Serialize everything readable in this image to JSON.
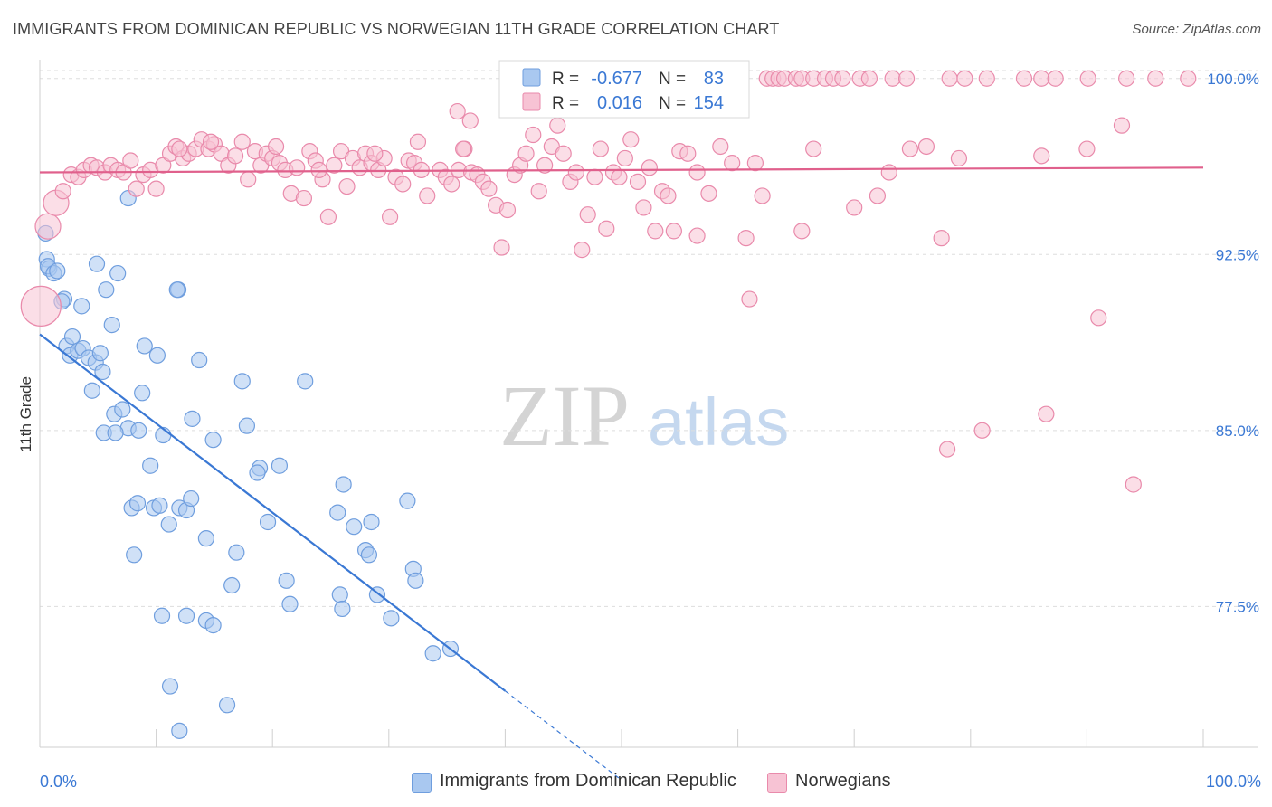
{
  "title": "IMMIGRANTS FROM DOMINICAN REPUBLIC VS NORWEGIAN 11TH GRADE CORRELATION CHART",
  "source": "Source: ZipAtlas.com",
  "watermark": {
    "zip": "ZIP",
    "atlas": "atlas"
  },
  "colors": {
    "blue": "#3a78d4",
    "blue_fill": "#a9c8f0",
    "blue_stroke": "#6f9ede",
    "pink": "#e0608c",
    "pink_fill": "#f7c3d4",
    "pink_stroke": "#e98aab",
    "grid": "#dddddd",
    "axis_text": "#3a78d4"
  },
  "legend_box": {
    "rows": [
      {
        "series": "blue",
        "r_label": "R =",
        "r_value": "-0.677",
        "n_label": "N =",
        "n_value": "83"
      },
      {
        "series": "pink",
        "r_label": "R =",
        "r_value": "0.016",
        "n_label": "N =",
        "n_value": "154"
      }
    ]
  },
  "chart_data": {
    "type": "scatter",
    "title": "IMMIGRANTS FROM DOMINICAN REPUBLIC VS NORWEGIAN 11TH GRADE CORRELATION CHART",
    "xlabel": "",
    "ylabel": "11th Grade",
    "xlim": [
      0,
      100
    ],
    "ylim": [
      71.5,
      100.8
    ],
    "x_tick_labels": [
      "0.0%",
      "100.0%"
    ],
    "y_ticks": [
      {
        "value": 100.0,
        "label": "100.0%"
      },
      {
        "value": 92.5,
        "label": "92.5%"
      },
      {
        "value": 85.0,
        "label": "85.0%"
      },
      {
        "value": 77.5,
        "label": "77.5%"
      }
    ],
    "grid": true,
    "legend_position": "bottom",
    "series": [
      {
        "name": "Immigrants from Dominican Republic",
        "color": "blue",
        "trend": {
          "x0": 0,
          "y0": 89.1,
          "x1": 40,
          "y1": 73.9,
          "dash_to_x": 50
        },
        "points": [
          [
            0.5,
            93.4
          ],
          [
            0.6,
            92.3
          ],
          [
            0.8,
            91.9
          ],
          [
            0.7,
            92.0
          ],
          [
            1.2,
            91.7
          ],
          [
            1.5,
            91.8
          ],
          [
            2.1,
            90.6
          ],
          [
            1.9,
            90.5
          ],
          [
            3.6,
            90.3
          ],
          [
            2.3,
            88.6
          ],
          [
            2.6,
            88.2
          ],
          [
            2.8,
            89.0
          ],
          [
            3.3,
            88.4
          ],
          [
            3.7,
            88.5
          ],
          [
            4.2,
            88.1
          ],
          [
            4.8,
            87.9
          ],
          [
            5.2,
            88.3
          ],
          [
            4.5,
            86.7
          ],
          [
            5.4,
            87.5
          ],
          [
            6.2,
            89.5
          ],
          [
            4.9,
            92.1
          ],
          [
            5.7,
            91.0
          ],
          [
            6.7,
            91.7
          ],
          [
            7.6,
            94.9
          ],
          [
            9.0,
            88.6
          ],
          [
            10.1,
            88.2
          ],
          [
            11.9,
            91.0
          ],
          [
            11.8,
            91.0
          ],
          [
            13.7,
            88.0
          ],
          [
            8.8,
            86.6
          ],
          [
            6.4,
            85.7
          ],
          [
            7.1,
            85.9
          ],
          [
            7.6,
            85.1
          ],
          [
            5.5,
            84.9
          ],
          [
            6.5,
            84.9
          ],
          [
            8.5,
            85.0
          ],
          [
            10.6,
            84.8
          ],
          [
            9.5,
            83.5
          ],
          [
            13.1,
            85.5
          ],
          [
            14.9,
            84.6
          ],
          [
            17.4,
            87.1
          ],
          [
            17.8,
            85.2
          ],
          [
            18.9,
            83.4
          ],
          [
            18.7,
            83.2
          ],
          [
            20.6,
            83.5
          ],
          [
            22.8,
            87.1
          ],
          [
            7.9,
            81.7
          ],
          [
            8.4,
            81.9
          ],
          [
            9.8,
            81.7
          ],
          [
            10.3,
            81.8
          ],
          [
            12.0,
            81.7
          ],
          [
            12.6,
            81.6
          ],
          [
            13.0,
            82.1
          ],
          [
            11.1,
            81.0
          ],
          [
            14.3,
            80.4
          ],
          [
            16.9,
            79.8
          ],
          [
            19.6,
            81.1
          ],
          [
            25.6,
            81.5
          ],
          [
            26.1,
            82.7
          ],
          [
            27.0,
            80.9
          ],
          [
            28.5,
            81.1
          ],
          [
            28.0,
            79.9
          ],
          [
            28.3,
            79.7
          ],
          [
            31.6,
            82.0
          ],
          [
            8.1,
            79.7
          ],
          [
            16.5,
            78.4
          ],
          [
            21.2,
            78.6
          ],
          [
            21.5,
            77.6
          ],
          [
            25.8,
            78.0
          ],
          [
            26.0,
            77.4
          ],
          [
            29.0,
            78.0
          ],
          [
            32.1,
            79.1
          ],
          [
            32.3,
            78.6
          ],
          [
            10.5,
            77.1
          ],
          [
            12.6,
            77.1
          ],
          [
            14.3,
            76.9
          ],
          [
            14.9,
            76.7
          ],
          [
            30.2,
            77.0
          ],
          [
            35.3,
            75.7
          ],
          [
            33.8,
            75.5
          ],
          [
            11.2,
            74.1
          ],
          [
            16.1,
            73.3
          ],
          [
            12.0,
            72.2
          ]
        ]
      },
      {
        "name": "Norwegians",
        "color": "pink",
        "trend": {
          "x0": 0,
          "y0": 96.0,
          "x1": 100,
          "y1": 96.2
        },
        "points": [
          [
            0.1,
            90.3,
            "xl"
          ],
          [
            0.7,
            93.7,
            "l"
          ],
          [
            1.4,
            94.7,
            "l"
          ],
          [
            2.0,
            95.2
          ],
          [
            2.7,
            95.9
          ],
          [
            3.3,
            95.8
          ],
          [
            3.8,
            96.1
          ],
          [
            4.4,
            96.3
          ],
          [
            4.9,
            96.2
          ],
          [
            5.6,
            96.0
          ],
          [
            6.1,
            96.3
          ],
          [
            6.7,
            96.1
          ],
          [
            7.2,
            96.0
          ],
          [
            7.8,
            96.5
          ],
          [
            8.3,
            95.3
          ],
          [
            8.9,
            95.9
          ],
          [
            9.5,
            96.1
          ],
          [
            10.0,
            95.3
          ],
          [
            10.6,
            96.3
          ],
          [
            11.2,
            96.8
          ],
          [
            11.7,
            97.1
          ],
          [
            12.3,
            96.6
          ],
          [
            12.8,
            96.8
          ],
          [
            13.4,
            97.0
          ],
          [
            13.9,
            97.4
          ],
          [
            14.5,
            97.0
          ],
          [
            15.0,
            97.2
          ],
          [
            15.6,
            96.8
          ],
          [
            16.2,
            96.3
          ],
          [
            16.8,
            96.7
          ],
          [
            17.4,
            97.3
          ],
          [
            17.9,
            95.7
          ],
          [
            18.5,
            96.9
          ],
          [
            19.0,
            96.3
          ],
          [
            19.5,
            96.8
          ],
          [
            20.0,
            96.6
          ],
          [
            20.6,
            96.4
          ],
          [
            21.1,
            96.1
          ],
          [
            21.6,
            95.1
          ],
          [
            22.1,
            96.2
          ],
          [
            22.7,
            94.9
          ],
          [
            23.2,
            96.9
          ],
          [
            23.7,
            96.5
          ],
          [
            24.3,
            95.7
          ],
          [
            24.8,
            94.1
          ],
          [
            25.3,
            96.3
          ],
          [
            25.9,
            96.9
          ],
          [
            26.4,
            95.4
          ],
          [
            26.9,
            96.6
          ],
          [
            27.5,
            96.2
          ],
          [
            28.0,
            96.8
          ],
          [
            28.5,
            96.4
          ],
          [
            29.1,
            96.1
          ],
          [
            29.6,
            96.6
          ],
          [
            30.1,
            94.1
          ],
          [
            30.6,
            95.8
          ],
          [
            31.2,
            95.5
          ],
          [
            31.7,
            96.5
          ],
          [
            32.2,
            96.4
          ],
          [
            32.8,
            96.1
          ],
          [
            33.3,
            95.0
          ],
          [
            34.4,
            96.1
          ],
          [
            34.9,
            95.8
          ],
          [
            35.4,
            95.5
          ],
          [
            36.0,
            96.1
          ],
          [
            36.5,
            97.0
          ],
          [
            37.1,
            96.0
          ],
          [
            37.6,
            95.9
          ],
          [
            38.1,
            95.6
          ],
          [
            38.6,
            95.3
          ],
          [
            39.2,
            94.6
          ],
          [
            39.7,
            92.8
          ],
          [
            40.2,
            94.4
          ],
          [
            40.8,
            95.9
          ],
          [
            41.3,
            96.3
          ],
          [
            41.8,
            96.8
          ],
          [
            42.4,
            97.6
          ],
          [
            42.9,
            95.2
          ],
          [
            43.4,
            96.3
          ],
          [
            44.0,
            97.1
          ],
          [
            44.5,
            98.0
          ],
          [
            45.0,
            96.8
          ],
          [
            45.6,
            95.6
          ],
          [
            46.1,
            96.0
          ],
          [
            46.6,
            92.7
          ],
          [
            47.1,
            94.2
          ],
          [
            47.7,
            95.8
          ],
          [
            48.2,
            97.0
          ],
          [
            48.7,
            93.6
          ],
          [
            49.3,
            96.0
          ],
          [
            49.8,
            95.8
          ],
          [
            50.3,
            96.6
          ],
          [
            50.8,
            97.4
          ],
          [
            51.4,
            95.6
          ],
          [
            51.9,
            94.5
          ],
          [
            52.4,
            96.2
          ],
          [
            52.9,
            93.5
          ],
          [
            53.5,
            95.2
          ],
          [
            54.0,
            95.0
          ],
          [
            54.5,
            93.5
          ],
          [
            55.0,
            96.9
          ],
          [
            55.7,
            96.8
          ],
          [
            56.5,
            96.0
          ],
          [
            57.5,
            95.1
          ],
          [
            58.5,
            97.1
          ],
          [
            59.5,
            96.4
          ],
          [
            60.7,
            93.2
          ],
          [
            61.5,
            96.4
          ],
          [
            62.1,
            95.0
          ],
          [
            62.5,
            100.0
          ],
          [
            63.0,
            100.0
          ],
          [
            63.5,
            100.0
          ],
          [
            64.0,
            100.0
          ],
          [
            65.0,
            100.0
          ],
          [
            65.5,
            100.0
          ],
          [
            66.5,
            100.0
          ],
          [
            67.5,
            100.0
          ],
          [
            68.2,
            100.0
          ],
          [
            69.0,
            100.0
          ],
          [
            70.5,
            100.0
          ],
          [
            71.3,
            100.0
          ],
          [
            73.3,
            100.0
          ],
          [
            74.5,
            100.0
          ],
          [
            78.2,
            100.0
          ],
          [
            79.5,
            100.0
          ],
          [
            81.4,
            100.0
          ],
          [
            84.6,
            100.0
          ],
          [
            86.1,
            100.0
          ],
          [
            87.3,
            100.0
          ],
          [
            90.1,
            100.0
          ],
          [
            93.4,
            100.0
          ],
          [
            95.9,
            100.0
          ],
          [
            98.7,
            100.0
          ],
          [
            93.0,
            98.0
          ],
          [
            90.0,
            97.0
          ],
          [
            86.1,
            96.7
          ],
          [
            79.0,
            96.6
          ],
          [
            76.2,
            97.1
          ],
          [
            74.8,
            97.0
          ],
          [
            72.0,
            95.0
          ],
          [
            66.5,
            97.0
          ],
          [
            65.5,
            93.5
          ],
          [
            61.0,
            90.6
          ],
          [
            56.5,
            93.3
          ],
          [
            37.0,
            98.2
          ],
          [
            35.9,
            98.6
          ],
          [
            73.0,
            96.0
          ],
          [
            70.0,
            94.5
          ],
          [
            77.5,
            93.2
          ],
          [
            91.0,
            89.8
          ],
          [
            86.5,
            85.7
          ],
          [
            81.0,
            85.0
          ],
          [
            78.0,
            84.2
          ],
          [
            94.0,
            82.7
          ],
          [
            36.4,
            97.0
          ],
          [
            32.5,
            97.3
          ],
          [
            28.8,
            96.8
          ],
          [
            24.0,
            96.1
          ],
          [
            20.3,
            97.1
          ],
          [
            14.7,
            97.3
          ],
          [
            12.0,
            97.0
          ]
        ]
      }
    ]
  },
  "bottom_legend": [
    {
      "series": "blue",
      "label": "Immigrants from Dominican Republic"
    },
    {
      "series": "pink",
      "label": "Norwegians"
    }
  ]
}
